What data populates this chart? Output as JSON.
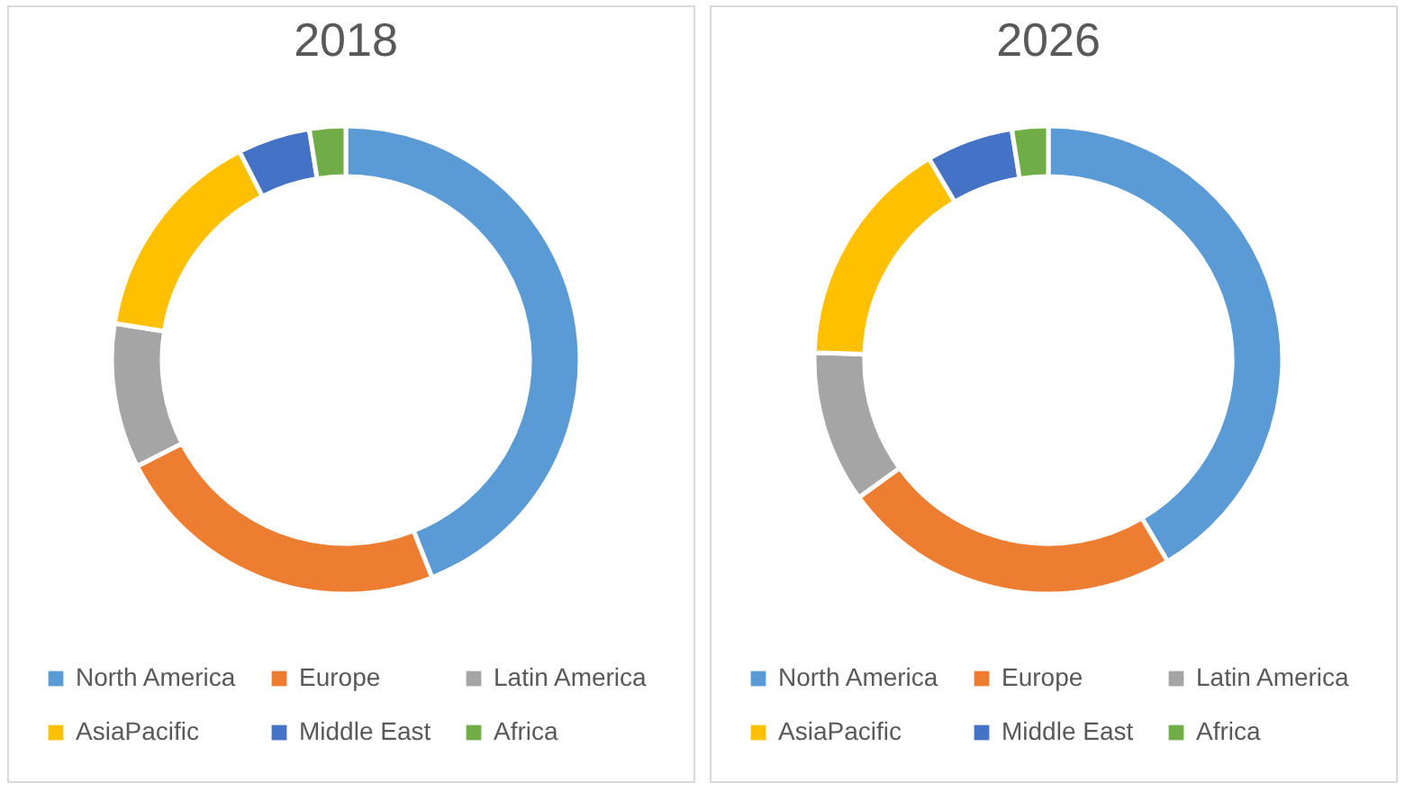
{
  "chart_data": [
    {
      "type": "donut",
      "title": "2018",
      "categories": [
        "North America",
        "Europe",
        "Latin America",
        "AsiaPacific",
        "Middle East",
        "Africa"
      ],
      "values": [
        44,
        23.5,
        10,
        15,
        5,
        2.5
      ],
      "colors": [
        "#5b9bd5",
        "#ed7d31",
        "#a5a5a5",
        "#ffc000",
        "#4472c4",
        "#70ad47"
      ],
      "legend": "bottom"
    },
    {
      "type": "donut",
      "title": "2026",
      "categories": [
        "North America",
        "Europe",
        "Latin America",
        "AsiaPacific",
        "Middle East",
        "Africa"
      ],
      "values": [
        41.5,
        23.5,
        10.5,
        16,
        6,
        2.5
      ],
      "colors": [
        "#5b9bd5",
        "#ed7d31",
        "#a5a5a5",
        "#ffc000",
        "#4472c4",
        "#70ad47"
      ],
      "legend": "bottom"
    }
  ]
}
